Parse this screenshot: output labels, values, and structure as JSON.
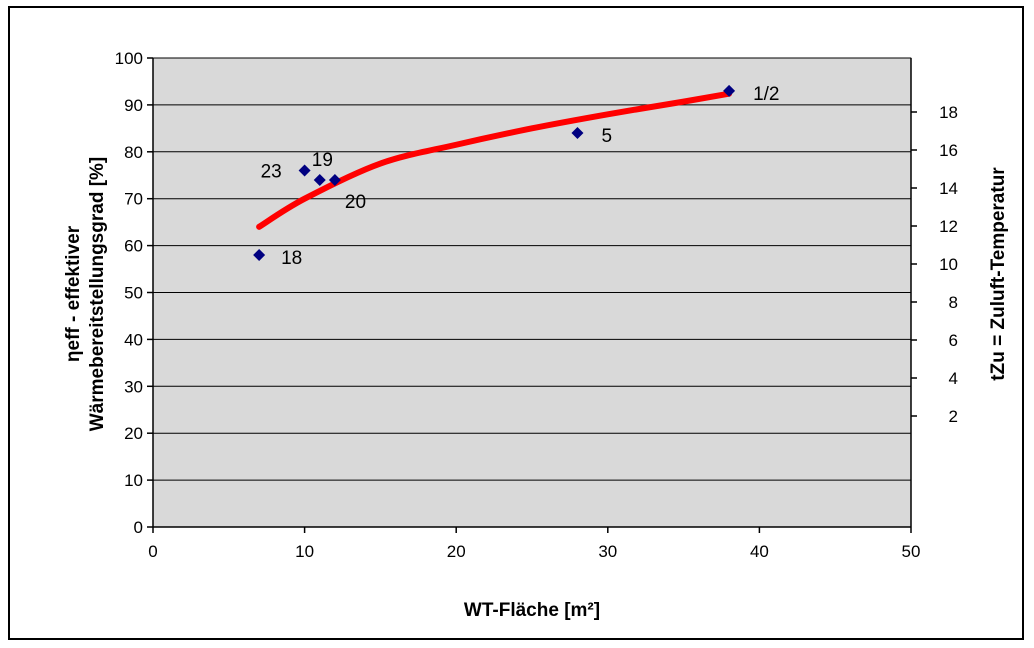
{
  "chart_data": {
    "type": "scatter",
    "xlabel": "WT-Fläche [m²]",
    "ylabel_line1": "ηeff - effektiver",
    "ylabel_line2": "Wärmebereitstellungsgrad  [%]",
    "y2label": "tZu = Zuluft-Temperatur",
    "xlim": [
      0,
      50
    ],
    "ylim": [
      0,
      100
    ],
    "y2lim": [
      0,
      18
    ],
    "x_ticks": [
      0,
      10,
      20,
      30,
      40,
      50
    ],
    "y_ticks": [
      0,
      10,
      20,
      30,
      40,
      50,
      60,
      70,
      80,
      90,
      100
    ],
    "y2_ticks": [
      2,
      4,
      6,
      8,
      10,
      12,
      14,
      16,
      18
    ],
    "grid": "horizontal",
    "plot_background": "#d9d9d9",
    "marker_color": "#000080",
    "trend_color": "#ff0000",
    "points": [
      {
        "x": 7,
        "y": 58,
        "label": "18"
      },
      {
        "x": 10,
        "y": 76,
        "label": "23"
      },
      {
        "x": 11,
        "y": 74,
        "label": "19"
      },
      {
        "x": 12,
        "y": 74,
        "label": "20"
      },
      {
        "x": 28,
        "y": 84,
        "label": "5"
      },
      {
        "x": 38,
        "y": 93,
        "label": "1/2"
      }
    ],
    "trend_line": {
      "x": [
        7,
        10,
        15,
        20,
        25,
        30,
        35,
        38
      ],
      "y": [
        64,
        70,
        77.5,
        81.5,
        85,
        88,
        90.7,
        92.4
      ]
    }
  }
}
